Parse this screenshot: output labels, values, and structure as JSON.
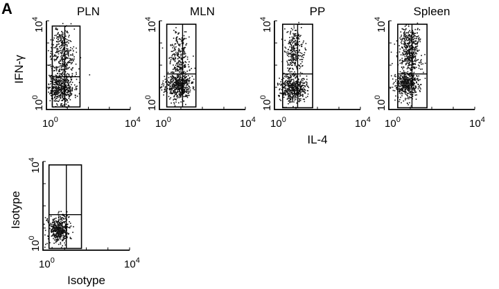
{
  "panel_label": "A",
  "colors": {
    "dots": "#111111",
    "frame": "#000000",
    "background": "#ffffff"
  },
  "chart_data": [
    {
      "type": "scatter",
      "title": "PLN",
      "ylabel": "IFN-γ",
      "xlabel": "",
      "x_scale": "log",
      "y_scale": "log",
      "xlim": [
        1,
        10000
      ],
      "ylim": [
        1,
        10000
      ],
      "x_ticks": [
        {
          "base": "10",
          "exp": "0"
        },
        {
          "base": "10",
          "exp": "4"
        }
      ],
      "y_ticks": [
        {
          "base": "10",
          "exp": "0"
        },
        {
          "base": "10",
          "exp": "4"
        }
      ],
      "gates": {
        "x": [
          1.9,
          7.5,
          40
        ],
        "y": [
          1.3,
          30,
          5800
        ]
      },
      "clusters": [
        {
          "cx": 4.5,
          "cy": 10,
          "sx": 0.32,
          "sy": 0.35,
          "n": 520
        },
        {
          "cx": 5.5,
          "cy": 200,
          "sx": 0.28,
          "sy": 0.45,
          "n": 260
        },
        {
          "cx": 5.5,
          "cy": 1500,
          "sx": 0.22,
          "sy": 0.35,
          "n": 110
        }
      ],
      "seed": 11
    },
    {
      "type": "scatter",
      "title": "MLN",
      "ylabel": "",
      "xlabel": "",
      "x_scale": "log",
      "y_scale": "log",
      "xlim": [
        1,
        10000
      ],
      "ylim": [
        1,
        10000
      ],
      "x_ticks": [
        {
          "base": "10",
          "exp": "0"
        },
        {
          "base": "10",
          "exp": "4"
        }
      ],
      "y_ticks": [
        {
          "base": "10",
          "exp": "0"
        },
        {
          "base": "10",
          "exp": "4"
        }
      ],
      "gates": {
        "x": [
          2.2,
          12,
          50
        ],
        "y": [
          1.3,
          40,
          7000
        ]
      },
      "clusters": [
        {
          "cx": 7,
          "cy": 12,
          "sx": 0.3,
          "sy": 0.3,
          "n": 520
        },
        {
          "cx": 8,
          "cy": 150,
          "sx": 0.25,
          "sy": 0.4,
          "n": 180
        },
        {
          "cx": 7,
          "cy": 1200,
          "sx": 0.2,
          "sy": 0.3,
          "n": 60
        }
      ],
      "seed": 23
    },
    {
      "type": "scatter",
      "title": "PP",
      "ylabel": "",
      "xlabel": "IL-4",
      "x_scale": "log",
      "y_scale": "log",
      "xlim": [
        1,
        10000
      ],
      "ylim": [
        1,
        10000
      ],
      "x_ticks": [
        {
          "base": "10",
          "exp": "0"
        },
        {
          "base": "10",
          "exp": "4"
        }
      ],
      "y_ticks": [
        {
          "base": "10",
          "exp": "0"
        },
        {
          "base": "10",
          "exp": "4"
        }
      ],
      "gates": {
        "x": [
          2.4,
          12,
          60
        ],
        "y": [
          1.2,
          40,
          7000
        ]
      },
      "clusters": [
        {
          "cx": 7,
          "cy": 10,
          "sx": 0.3,
          "sy": 0.3,
          "n": 480
        },
        {
          "cx": 8,
          "cy": 250,
          "sx": 0.22,
          "sy": 0.45,
          "n": 200
        },
        {
          "cx": 8,
          "cy": 1400,
          "sx": 0.18,
          "sy": 0.3,
          "n": 80
        }
      ],
      "seed": 37
    },
    {
      "type": "scatter",
      "title": "Spleen",
      "ylabel": "",
      "xlabel": "",
      "x_scale": "log",
      "y_scale": "log",
      "xlim": [
        1,
        10000
      ],
      "ylim": [
        1,
        10000
      ],
      "x_ticks": [
        {
          "base": "10",
          "exp": "0"
        },
        {
          "base": "10",
          "exp": "4"
        }
      ],
      "y_ticks": [
        {
          "base": "10",
          "exp": "0"
        },
        {
          "base": "10",
          "exp": "4"
        }
      ],
      "gates": {
        "x": [
          2.6,
          12,
          60
        ],
        "y": [
          1.2,
          40,
          7000
        ]
      },
      "clusters": [
        {
          "cx": 7,
          "cy": 14,
          "sx": 0.3,
          "sy": 0.32,
          "n": 480
        },
        {
          "cx": 9,
          "cy": 300,
          "sx": 0.25,
          "sy": 0.45,
          "n": 300
        },
        {
          "cx": 9,
          "cy": 1600,
          "sx": 0.22,
          "sy": 0.3,
          "n": 150
        }
      ],
      "seed": 53
    },
    {
      "type": "scatter",
      "title": "",
      "ylabel": "Isotype",
      "xlabel": "Isotype",
      "x_scale": "log",
      "y_scale": "log",
      "xlim": [
        1,
        10000
      ],
      "ylim": [
        1,
        10000
      ],
      "x_ticks": [
        {
          "base": "10",
          "exp": "0"
        },
        {
          "base": "10",
          "exp": "4"
        }
      ],
      "y_ticks": [
        {
          "base": "10",
          "exp": "0"
        },
        {
          "base": "10",
          "exp": "4"
        }
      ],
      "gates": {
        "x": [
          1.9,
          12,
          60
        ],
        "y": [
          1.2,
          40,
          7000
        ]
      },
      "clusters": [
        {
          "cx": 5,
          "cy": 8,
          "sx": 0.25,
          "sy": 0.28,
          "n": 420
        },
        {
          "cx": 7,
          "cy": 25,
          "sx": 0.15,
          "sy": 0.2,
          "n": 40
        }
      ],
      "seed": 71
    }
  ]
}
